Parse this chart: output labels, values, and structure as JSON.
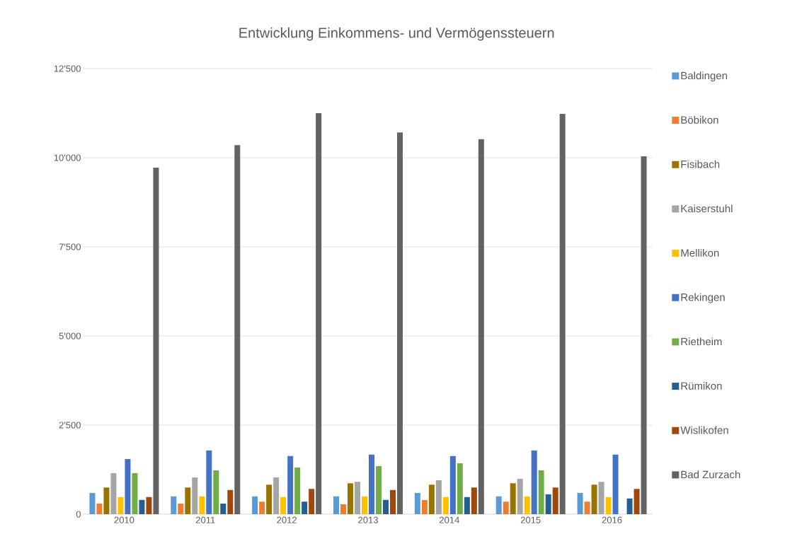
{
  "chart_data": {
    "type": "bar",
    "title": "Entwicklung Einkommens- und Vermögenssteuern",
    "categories": [
      "2010",
      "2011",
      "2012",
      "2013",
      "2014",
      "2015",
      "2016"
    ],
    "series": [
      {
        "name": "Baldingen",
        "color": "#5b9bd5",
        "values": [
          600,
          500,
          500,
          500,
          600,
          500,
          600
        ]
      },
      {
        "name": "Böbikon",
        "color": "#ed7d31",
        "values": [
          300,
          300,
          350,
          280,
          400,
          350,
          350
        ]
      },
      {
        "name": "Fisibach",
        "color": "#997300",
        "values": [
          750,
          750,
          830,
          870,
          830,
          870,
          830
        ]
      },
      {
        "name": "Kaiserstuhl",
        "color": "#a5a5a5",
        "values": [
          1150,
          1030,
          1030,
          910,
          950,
          990,
          910
        ]
      },
      {
        "name": "Mellikon",
        "color": "#ffc000",
        "values": [
          480,
          500,
          480,
          500,
          480,
          500,
          480
        ]
      },
      {
        "name": "Rekingen",
        "color": "#4472c4",
        "values": [
          1550,
          1790,
          1630,
          1670,
          1630,
          1790,
          1670
        ]
      },
      {
        "name": "Rietheim",
        "color": "#70ad47",
        "values": [
          1150,
          1230,
          1310,
          1350,
          1430,
          1230,
          null
        ]
      },
      {
        "name": "Rümikon",
        "color": "#255e91",
        "values": [
          400,
          300,
          350,
          400,
          480,
          560,
          440
        ]
      },
      {
        "name": "Wislikofen",
        "color": "#9e480e",
        "values": [
          480,
          680,
          710,
          680,
          750,
          750,
          710
        ]
      },
      {
        "name": "Bad Zurzach",
        "color": "#636363",
        "values": [
          9720,
          10350,
          11250,
          10710,
          10520,
          11230,
          10040
        ]
      }
    ],
    "ylim": [
      0,
      12500
    ],
    "yticks": [
      0,
      {
        "value": 2500,
        "label": "2'500"
      },
      {
        "value": 5000,
        "label": "5'000"
      },
      {
        "value": 7500,
        "label": "7'500"
      },
      {
        "value": 10000,
        "label": "10'000"
      },
      {
        "value": 12500,
        "label": "12'500"
      }
    ],
    "grid": "y",
    "legend": "right"
  }
}
